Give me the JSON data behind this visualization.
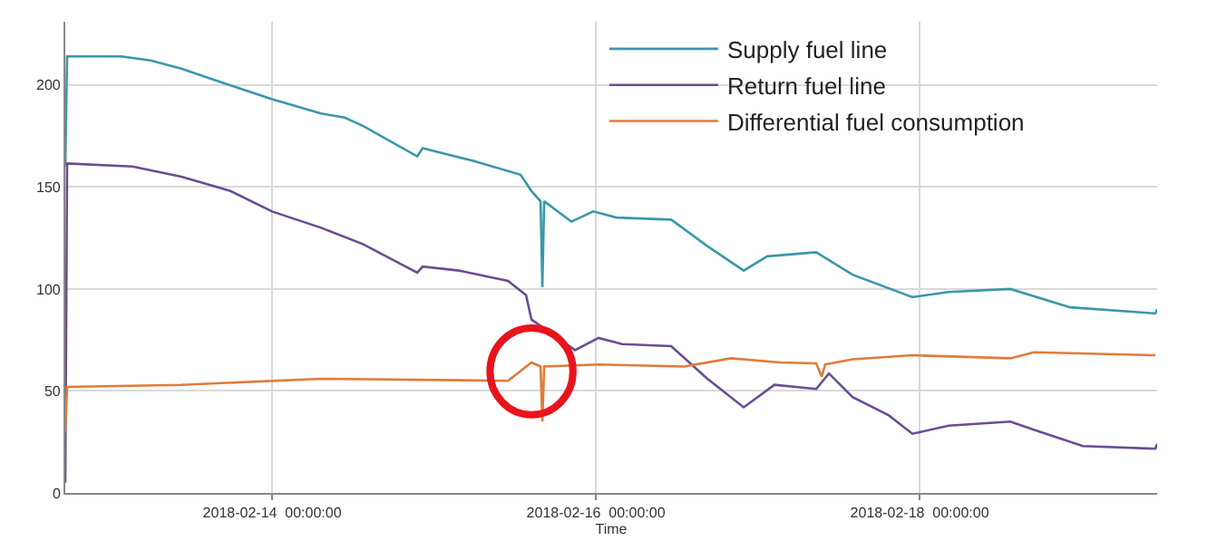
{
  "chart_data": {
    "type": "line",
    "xlabel": "Time",
    "xlim": [
      "2018-02-12T17:20",
      "2018-02-19T11:13"
    ],
    "xticks": [
      {
        "value": "2018-02-14T00:00",
        "label": "2018-02-14  00:00:00"
      },
      {
        "value": "2018-02-16T00:00",
        "label": "2018-02-16  00:00:00"
      },
      {
        "value": "2018-02-18T00:00",
        "label": "2018-02-18  00:00:00"
      }
    ],
    "ylim": [
      0,
      231
    ],
    "yticks": [
      0,
      50,
      100,
      150,
      200
    ],
    "grid": true,
    "legend": "top right",
    "marker": "none",
    "line_style": "solid",
    "series": [
      {
        "name": "Supply fuel line",
        "color": "#3a97a9",
        "x": [
          "2018-02-12T17:20",
          "2018-02-12T17:36",
          "2018-02-13T01:40",
          "2018-02-13T06:00",
          "2018-02-13T10:33",
          "2018-02-13T16:44",
          "2018-02-14T00:00",
          "2018-02-14T07:16",
          "2018-02-14T10:45",
          "2018-02-14T13:27",
          "2018-02-14T21:31",
          "2018-02-14T22:19",
          "2018-02-15T05:35",
          "2018-02-15T12:50",
          "2018-02-15T14:27",
          "2018-02-15T15:48",
          "2018-02-15T16:04",
          "2018-02-15T16:20",
          "2018-02-15T20:22",
          "2018-02-15T23:36",
          "2018-02-16T03:05",
          "2018-02-16T11:10",
          "2018-02-16T16:32",
          "2018-02-16T21:55",
          "2018-02-17T01:24",
          "2018-02-17T08:40",
          "2018-02-17T14:03",
          "2018-02-17T22:56",
          "2018-02-18T04:18",
          "2018-02-18T13:27",
          "2018-02-18T22:19",
          "2018-02-19T10:57",
          "2018-02-19T11:13"
        ],
        "values": [
          160,
          214,
          214,
          212,
          208,
          201,
          193,
          186,
          184,
          180,
          165,
          169,
          163,
          156,
          148,
          143,
          101,
          143,
          133,
          138,
          135,
          134,
          121,
          109,
          116,
          118,
          107,
          96,
          98.5,
          100,
          91,
          88,
          90
        ]
      },
      {
        "name": "Return fuel line",
        "color": "#6a4c93",
        "x": [
          "2018-02-12T17:20",
          "2018-02-12T17:36",
          "2018-02-13T03:18",
          "2018-02-13T10:33",
          "2018-02-13T17:49",
          "2018-02-14T00:00",
          "2018-02-14T07:16",
          "2018-02-14T13:27",
          "2018-02-14T21:31",
          "2018-02-14T22:19",
          "2018-02-15T03:42",
          "2018-02-15T10:58",
          "2018-02-15T13:39",
          "2018-02-15T14:27",
          "2018-02-15T20:54",
          "2018-02-16T00:24",
          "2018-02-16T03:54",
          "2018-02-16T11:10",
          "2018-02-16T16:32",
          "2018-02-16T21:55",
          "2018-02-17T02:29",
          "2018-02-17T08:40",
          "2018-02-17T10:33",
          "2018-02-17T14:03",
          "2018-02-17T19:26",
          "2018-02-17T22:56",
          "2018-02-18T04:18",
          "2018-02-18T13:27",
          "2018-02-18T16:56",
          "2018-02-19T00:12",
          "2018-02-19T10:57",
          "2018-02-19T11:13"
        ],
        "values": [
          5,
          161.5,
          160,
          155,
          148,
          138,
          130,
          122,
          108,
          111,
          109,
          104,
          97,
          85,
          70,
          76,
          73,
          72,
          56,
          42,
          53,
          51,
          58.6,
          47,
          38,
          29,
          33,
          35,
          31,
          23,
          21.7,
          24
        ]
      },
      {
        "name": "Differential fuel consumption",
        "color": "#e07b39",
        "x": [
          "2018-02-12T17:20",
          "2018-02-12T17:36",
          "2018-02-13T10:33",
          "2018-02-14T07:16",
          "2018-02-15T10:58",
          "2018-02-15T14:27",
          "2018-02-15T15:48",
          "2018-02-15T16:04",
          "2018-02-15T16:20",
          "2018-02-16T00:24",
          "2018-02-16T13:03",
          "2018-02-16T20:02",
          "2018-02-17T03:17",
          "2018-02-17T08:40",
          "2018-02-17T09:29",
          "2018-02-17T10:00",
          "2018-02-17T14:03",
          "2018-02-17T22:56",
          "2018-02-18T13:27",
          "2018-02-18T16:56",
          "2018-02-19T10:57"
        ],
        "values": [
          30,
          52,
          53,
          56,
          55,
          64,
          62,
          35,
          62,
          63,
          62,
          66,
          64,
          63.5,
          57,
          63,
          65.5,
          67.5,
          66,
          69,
          67.5
        ]
      }
    ]
  }
}
